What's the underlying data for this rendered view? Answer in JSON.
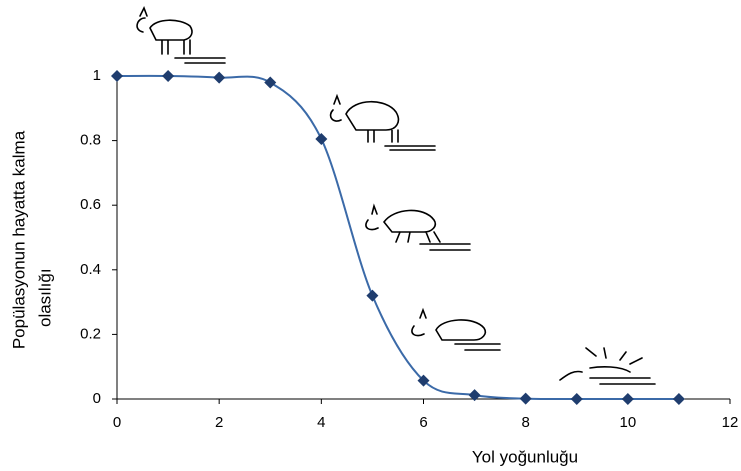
{
  "chart_data": {
    "type": "line",
    "x_label": "Yol yoğunluğu",
    "y_label": [
      "Popülasyonun hayatta kalma",
      "olasılığı"
    ],
    "x": [
      0,
      1,
      2,
      3,
      4,
      5,
      6,
      7,
      8,
      9,
      10,
      11
    ],
    "series": [
      {
        "color": "#1f3d6e",
        "line_color": "#3b6aa8",
        "values": [
          1,
          1,
          0.995,
          0.98,
          0.805,
          0.32,
          0.057,
          0.012,
          0.001,
          0,
          0,
          0
        ]
      }
    ],
    "xlim": [
      0,
      12
    ],
    "xticks": [
      0,
      2,
      4,
      6,
      8,
      10,
      12
    ],
    "ylim": [
      0,
      1
    ],
    "yticks": [
      0,
      0.2,
      0.4,
      0.6,
      0.8,
      1
    ],
    "grid": false,
    "marker": "diamond"
  }
}
